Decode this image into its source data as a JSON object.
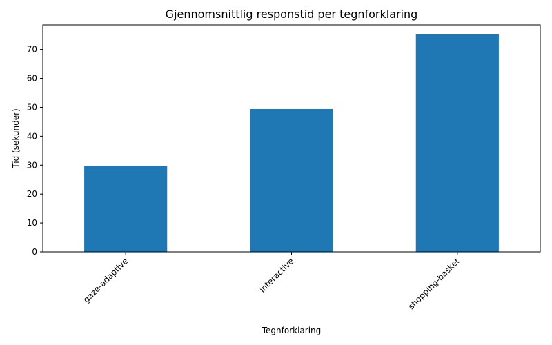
{
  "chart_data": {
    "type": "bar",
    "title": "Gjennomsnittlig responstid per tegnforklaring",
    "xlabel": "Tegnforklaring",
    "ylabel": "Tid (sekunder)",
    "categories": [
      "gaze-adaptive",
      "interactive",
      "shopping-basket"
    ],
    "values": [
      29.8,
      49.4,
      75.3
    ],
    "ylim": [
      0,
      78.5
    ],
    "yticks": [
      0,
      10,
      20,
      30,
      40,
      50,
      60,
      70
    ],
    "grid": false,
    "legend": "none",
    "bar_color": "#1f77b4",
    "xtick_rotation": 45
  }
}
